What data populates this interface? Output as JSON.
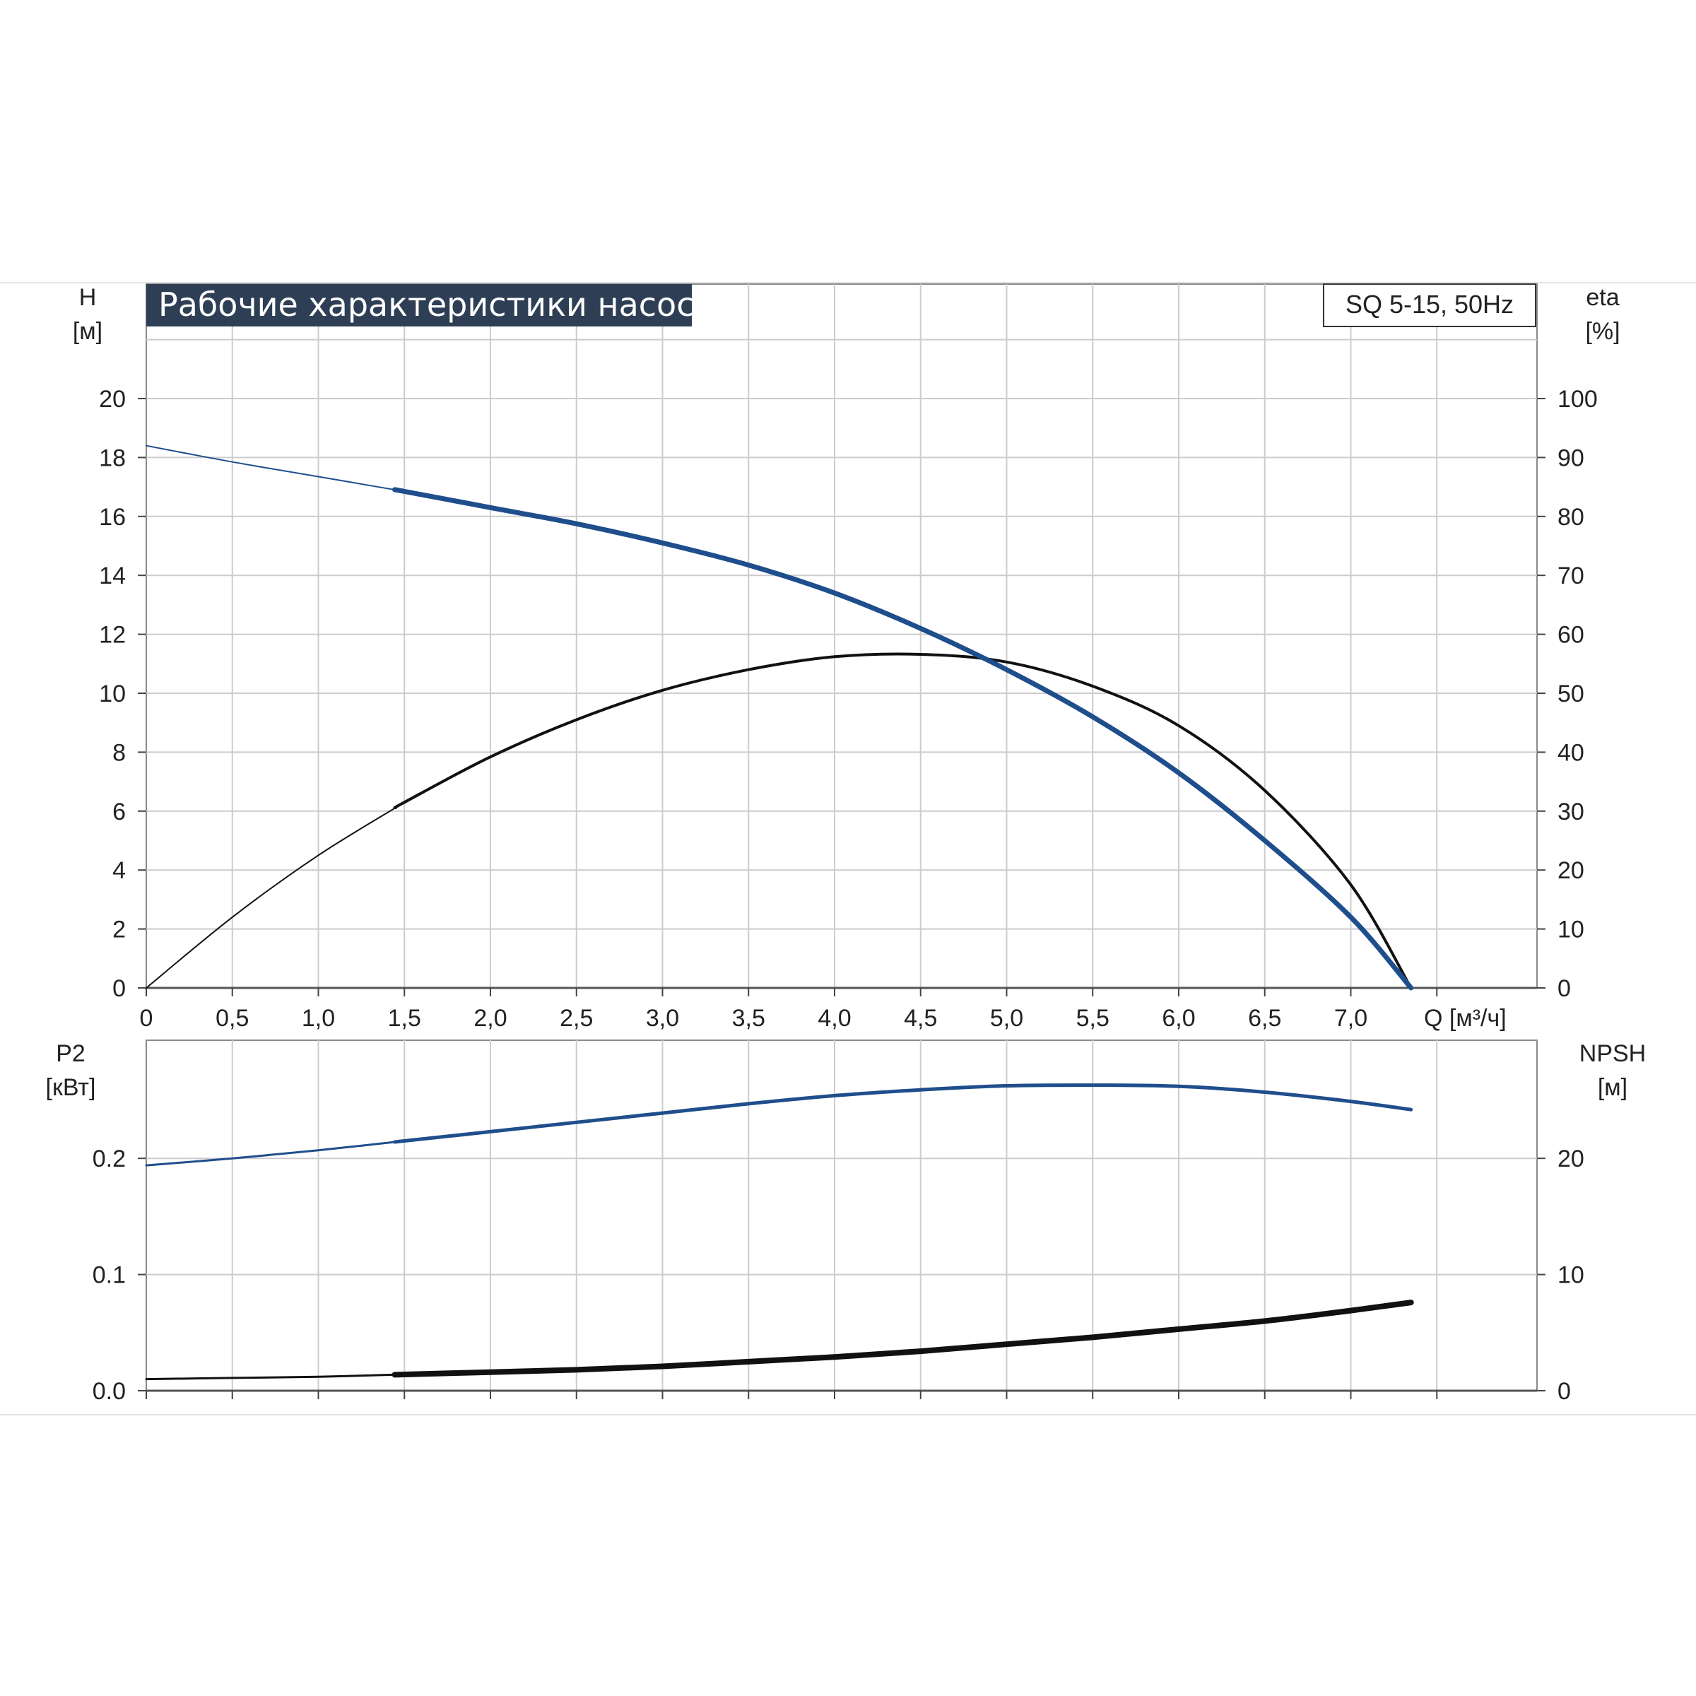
{
  "chart_data": [
    {
      "type": "line",
      "title": "Рабочие характеристики насоса",
      "model": "SQ 5-15, 50Hz",
      "xlabel": "Q [м³/ч]",
      "ylabel_left": {
        "name": "H",
        "unit": "[м]"
      },
      "ylabel_right": {
        "name": "eta",
        "unit": "[%]"
      },
      "xlim": [
        0,
        8.0
      ],
      "ylim_left": [
        0,
        24
      ],
      "ylim_right": [
        0,
        120
      ],
      "x_tick_labels": [
        "0",
        "0,5",
        "1,0",
        "1,5",
        "2,0",
        "2,5",
        "3,0",
        "3,5",
        "4,0",
        "4,5",
        "5,0",
        "5,5",
        "6,0",
        "6,5",
        "7,0"
      ],
      "y_left_tick_labels": [
        "0",
        "2",
        "4",
        "6",
        "8",
        "10",
        "12",
        "14",
        "16",
        "18",
        "20"
      ],
      "y_right_tick_labels": [
        "0",
        "10",
        "20",
        "30",
        "40",
        "50",
        "60",
        "70",
        "80",
        "90",
        "100"
      ],
      "grid": true,
      "series": [
        {
          "name": "H",
          "color": "#1f4e8c",
          "thick_from_x": 1.45,
          "points": [
            [
              0,
              18.4
            ],
            [
              0.5,
              17.85
            ],
            [
              1.0,
              17.35
            ],
            [
              1.5,
              16.85
            ],
            [
              2.0,
              16.3
            ],
            [
              2.5,
              15.75
            ],
            [
              3.0,
              15.1
            ],
            [
              3.5,
              14.35
            ],
            [
              4.0,
              13.4
            ],
            [
              4.5,
              12.2
            ],
            [
              5.0,
              10.8
            ],
            [
              5.5,
              9.2
            ],
            [
              6.0,
              7.3
            ],
            [
              6.5,
              5.0
            ],
            [
              7.0,
              2.4
            ],
            [
              7.35,
              0.0
            ]
          ]
        },
        {
          "name": "eta",
          "color": "#111111",
          "thick_from_x": 1.45,
          "points": [
            [
              0,
              0
            ],
            [
              0.5,
              12
            ],
            [
              1.0,
              22.5
            ],
            [
              1.5,
              31.5
            ],
            [
              2.0,
              39.2
            ],
            [
              2.5,
              45.5
            ],
            [
              3.0,
              50.5
            ],
            [
              3.5,
              54.0
            ],
            [
              4.0,
              56.2
            ],
            [
              4.5,
              56.6
            ],
            [
              5.0,
              55.3
            ],
            [
              5.5,
              51.2
            ],
            [
              6.0,
              44.5
            ],
            [
              6.5,
              33.5
            ],
            [
              7.0,
              17.5
            ],
            [
              7.35,
              0
            ]
          ]
        }
      ]
    },
    {
      "type": "line",
      "ylabel_left": {
        "name": "P2",
        "unit": "[кВт]"
      },
      "ylabel_right": {
        "name": "NPSH",
        "unit": "[м]"
      },
      "xlim": [
        0,
        8.0
      ],
      "ylim_left": [
        0,
        0.3
      ],
      "ylim_right": [
        0,
        30
      ],
      "y_left_tick_labels": [
        "0.0",
        "0.1",
        "0.2"
      ],
      "y_right_tick_labels": [
        "0",
        "10",
        "20"
      ],
      "grid": true,
      "series": [
        {
          "name": "P2",
          "color": "#1f4e8c",
          "thick_from_x": 1.45,
          "points": [
            [
              0,
              0.194
            ],
            [
              0.5,
              0.2
            ],
            [
              1.0,
              0.207
            ],
            [
              1.5,
              0.215
            ],
            [
              2.0,
              0.223
            ],
            [
              2.5,
              0.231
            ],
            [
              3.0,
              0.239
            ],
            [
              3.5,
              0.247
            ],
            [
              4.0,
              0.254
            ],
            [
              4.5,
              0.259
            ],
            [
              5.0,
              0.2625
            ],
            [
              5.5,
              0.263
            ],
            [
              6.0,
              0.262
            ],
            [
              6.5,
              0.257
            ],
            [
              7.0,
              0.249
            ],
            [
              7.35,
              0.242
            ]
          ]
        },
        {
          "name": "NPSH",
          "color": "#111111",
          "thick_from_x": 1.45,
          "points": [
            [
              0,
              1.0
            ],
            [
              0.5,
              1.1
            ],
            [
              1.0,
              1.2
            ],
            [
              1.5,
              1.4
            ],
            [
              2.0,
              1.6
            ],
            [
              2.5,
              1.8
            ],
            [
              3.0,
              2.1
            ],
            [
              3.5,
              2.5
            ],
            [
              4.0,
              2.9
            ],
            [
              4.5,
              3.4
            ],
            [
              5.0,
              4.0
            ],
            [
              5.5,
              4.6
            ],
            [
              6.0,
              5.3
            ],
            [
              6.5,
              6.0
            ],
            [
              7.0,
              6.9
            ],
            [
              7.35,
              7.6
            ]
          ]
        }
      ]
    }
  ]
}
